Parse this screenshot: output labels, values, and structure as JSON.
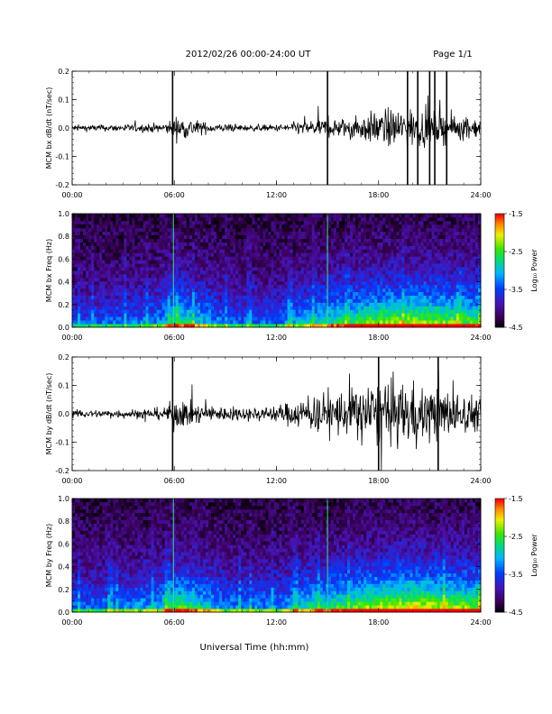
{
  "header": {
    "title": "2012/02/26  00:00-24:00 UT",
    "page": "Page 1/1"
  },
  "xlabel": "Universal Time (hh:mm)",
  "chart_data": [
    {
      "type": "line",
      "title": "",
      "ylabel": "MCM bx dB/dt (nT/sec)",
      "xlim": [
        0,
        24
      ],
      "ylim": [
        -0.2,
        0.2
      ],
      "xticks": [
        "00:00",
        "06:00",
        "12:00",
        "18:00",
        "24:00"
      ],
      "yticks": [
        "-0.2",
        "-0.1",
        "0.0",
        "0.1",
        "0.2"
      ],
      "amplitude_by_hour": [
        {
          "t": 0,
          "amp": 0.02
        },
        {
          "t": 2,
          "amp": 0.02
        },
        {
          "t": 4,
          "amp": 0.025
        },
        {
          "t": 5.5,
          "amp": 0.03
        },
        {
          "t": 6,
          "amp": 0.07
        },
        {
          "t": 7,
          "amp": 0.06
        },
        {
          "t": 8,
          "amp": 0.03
        },
        {
          "t": 10,
          "amp": 0.02
        },
        {
          "t": 12,
          "amp": 0.02
        },
        {
          "t": 13,
          "amp": 0.035
        },
        {
          "t": 14,
          "amp": 0.05
        },
        {
          "t": 15,
          "amp": 0.06
        },
        {
          "t": 16,
          "amp": 0.06
        },
        {
          "t": 17,
          "amp": 0.08
        },
        {
          "t": 18,
          "amp": 0.11
        },
        {
          "t": 19,
          "amp": 0.12
        },
        {
          "t": 20,
          "amp": 0.12
        },
        {
          "t": 21,
          "amp": 0.1
        },
        {
          "t": 22,
          "amp": 0.09
        },
        {
          "t": 23,
          "amp": 0.07
        },
        {
          "t": 24,
          "amp": 0.06
        }
      ],
      "spikes_hours": [
        5.9,
        15.0,
        19.7,
        20.3,
        21.0,
        21.3,
        22.0
      ]
    },
    {
      "type": "heatmap",
      "title": "",
      "ylabel": "MCM bx Freq (Hz)",
      "colorbar_label": "Log₁₀ Power",
      "colorbar_ticks": [
        "-1.5",
        "-2.5",
        "-3.5",
        "-4.5"
      ],
      "clim": [
        -4.5,
        -1.5
      ],
      "xlim": [
        0,
        24
      ],
      "ylim": [
        0,
        1.0
      ],
      "xticks": [
        "00:00",
        "06:00",
        "12:00",
        "18:00",
        "24:00"
      ],
      "yticks": [
        "0.0",
        "0.2",
        "0.4",
        "0.6",
        "0.8",
        "1.0"
      ],
      "activity_by_hour": [
        {
          "t": 0,
          "level": 0.25
        },
        {
          "t": 3,
          "level": 0.3
        },
        {
          "t": 5,
          "level": 0.35
        },
        {
          "t": 6,
          "level": 0.55
        },
        {
          "t": 7,
          "level": 0.5
        },
        {
          "t": 9,
          "level": 0.3
        },
        {
          "t": 12,
          "level": 0.3
        },
        {
          "t": 14,
          "level": 0.45
        },
        {
          "t": 16,
          "level": 0.55
        },
        {
          "t": 18,
          "level": 0.65
        },
        {
          "t": 20,
          "level": 0.7
        },
        {
          "t": 22,
          "level": 0.65
        },
        {
          "t": 24,
          "level": 0.6
        }
      ],
      "bright_lines_hours": [
        5.95,
        15.0
      ]
    },
    {
      "type": "line",
      "title": "",
      "ylabel": "MCM by dB/dt (nT/sec)",
      "xlim": [
        0,
        24
      ],
      "ylim": [
        -0.2,
        0.2
      ],
      "xticks": [
        "00:00",
        "06:00",
        "12:00",
        "18:00",
        "24:00"
      ],
      "yticks": [
        "-0.2",
        "-0.1",
        "0.0",
        "0.1",
        "0.2"
      ],
      "amplitude_by_hour": [
        {
          "t": 0,
          "amp": 0.025
        },
        {
          "t": 2,
          "amp": 0.025
        },
        {
          "t": 4,
          "amp": 0.03
        },
        {
          "t": 5.5,
          "amp": 0.04
        },
        {
          "t": 6,
          "amp": 0.1
        },
        {
          "t": 7,
          "amp": 0.07
        },
        {
          "t": 8,
          "amp": 0.05
        },
        {
          "t": 10,
          "amp": 0.04
        },
        {
          "t": 12,
          "amp": 0.05
        },
        {
          "t": 13,
          "amp": 0.08
        },
        {
          "t": 14,
          "amp": 0.11
        },
        {
          "t": 15,
          "amp": 0.13
        },
        {
          "t": 16,
          "amp": 0.15
        },
        {
          "t": 17,
          "amp": 0.18
        },
        {
          "t": 18,
          "amp": 0.2
        },
        {
          "t": 19,
          "amp": 0.2
        },
        {
          "t": 20,
          "amp": 0.19
        },
        {
          "t": 21,
          "amp": 0.17
        },
        {
          "t": 22,
          "amp": 0.15
        },
        {
          "t": 23,
          "amp": 0.13
        },
        {
          "t": 24,
          "amp": 0.1
        }
      ],
      "spikes_hours": [
        5.9,
        18.0,
        21.5
      ]
    },
    {
      "type": "heatmap",
      "title": "",
      "ylabel": "MCM by Freq (Hz)",
      "colorbar_label": "Log₁₀ Power",
      "colorbar_ticks": [
        "-1.5",
        "-2.5",
        "-3.5",
        "-4.5"
      ],
      "clim": [
        -4.5,
        -1.5
      ],
      "xlim": [
        0,
        24
      ],
      "ylim": [
        0,
        1.0
      ],
      "xticks": [
        "00:00",
        "06:00",
        "12:00",
        "18:00",
        "24:00"
      ],
      "yticks": [
        "0.0",
        "0.2",
        "0.4",
        "0.6",
        "0.8",
        "1.0"
      ],
      "activity_by_hour": [
        {
          "t": 0,
          "level": 0.3
        },
        {
          "t": 3,
          "level": 0.35
        },
        {
          "t": 5,
          "level": 0.4
        },
        {
          "t": 6,
          "level": 0.6
        },
        {
          "t": 7,
          "level": 0.55
        },
        {
          "t": 9,
          "level": 0.35
        },
        {
          "t": 12,
          "level": 0.35
        },
        {
          "t": 14,
          "level": 0.5
        },
        {
          "t": 16,
          "level": 0.6
        },
        {
          "t": 18,
          "level": 0.7
        },
        {
          "t": 20,
          "level": 0.75
        },
        {
          "t": 22,
          "level": 0.7
        },
        {
          "t": 24,
          "level": 0.65
        }
      ],
      "bright_lines_hours": [
        5.95,
        15.0
      ]
    }
  ]
}
